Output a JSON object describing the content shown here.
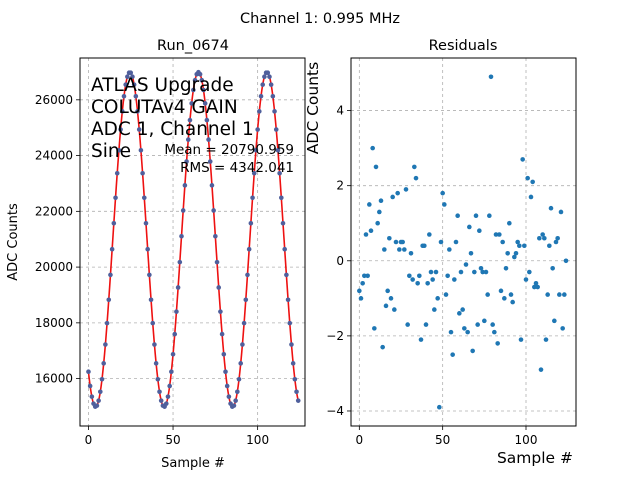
{
  "figure": {
    "suptitle": "Channel 1: 0.995 MHz"
  },
  "chart_data": [
    {
      "type": "line",
      "title": "Run_0674",
      "xlabel": "Sample #",
      "ylabel": "ADC Counts",
      "xlim": [
        -5,
        128
      ],
      "ylim": [
        14300,
        27500
      ],
      "xticks": [
        0,
        50,
        100
      ],
      "yticks": [
        16000,
        18000,
        20000,
        22000,
        24000,
        26000
      ],
      "grid": true,
      "annotations": {
        "info_lines": [
          "ATLAS Upgrade",
          "COLUTAv4 GAIN",
          "ADC 1, Channel 1",
          "Sine"
        ],
        "mean": "Mean = 20790.959",
        "rms": "RMS = 4342.041"
      },
      "model": {
        "offset": 20990,
        "amplitude": 6000,
        "period": 40.5,
        "peak_at": 24.5
      },
      "series": [
        {
          "kind": "points",
          "color": "#4f5f9c",
          "x_start": 0,
          "x_end": 124,
          "x_step": 1
        },
        {
          "kind": "fit",
          "color": "#ee1111"
        }
      ]
    },
    {
      "type": "scatter",
      "title": "Residuals",
      "xlabel": "Sample #",
      "ylabel": "ADC Counts",
      "xlim": [
        -5,
        130
      ],
      "ylim": [
        -4.4,
        5.4
      ],
      "xticks": [
        0,
        50,
        100
      ],
      "yticks": [
        -4,
        -2,
        0,
        2,
        4
      ],
      "grid": true,
      "color": "#1f77b4",
      "x": [
        0,
        1,
        2,
        3,
        4,
        5,
        6,
        7,
        8,
        9,
        10,
        11,
        12,
        13,
        14,
        15,
        16,
        17,
        18,
        19,
        20,
        21,
        22,
        23,
        24,
        25,
        26,
        27,
        28,
        29,
        30,
        31,
        32,
        33,
        34,
        35,
        36,
        37,
        38,
        39,
        40,
        41,
        42,
        43,
        44,
        45,
        46,
        47,
        48,
        49,
        50,
        51,
        52,
        53,
        54,
        55,
        56,
        57,
        58,
        59,
        60,
        61,
        62,
        63,
        64,
        65,
        66,
        67,
        68,
        69,
        70,
        71,
        72,
        73,
        74,
        75,
        76,
        77,
        78,
        79,
        80,
        81,
        82,
        83,
        84,
        85,
        86,
        87,
        88,
        89,
        90,
        91,
        92,
        93,
        94,
        95,
        96,
        97,
        98,
        99,
        100,
        101,
        102,
        103,
        104,
        105,
        106,
        107,
        108,
        109,
        110,
        111,
        112,
        113,
        114,
        115,
        116,
        117,
        118,
        119,
        120,
        121,
        122,
        123,
        124
      ],
      "y": [
        -0.8,
        -1.0,
        -0.6,
        -0.4,
        0.7,
        -0.4,
        1.5,
        0.8,
        3.0,
        -1.8,
        2.5,
        1.0,
        1.3,
        1.6,
        -2.3,
        0.3,
        -1.2,
        -0.8,
        0.6,
        -1.0,
        1.7,
        -1.3,
        0.5,
        1.8,
        0.3,
        0.5,
        0.5,
        0.3,
        1.9,
        -1.7,
        -0.4,
        0.2,
        -0.5,
        2.5,
        2.2,
        -0.6,
        -0.4,
        -2.1,
        0.4,
        0.4,
        -1.7,
        -0.6,
        0.7,
        -0.3,
        -0.5,
        -1.3,
        -0.3,
        -1.0,
        -3.9,
        0.5,
        1.8,
        1.5,
        -0.9,
        -0.4,
        0.3,
        -1.9,
        -2.5,
        -0.5,
        0.5,
        1.2,
        -1.4,
        -0.3,
        -1.3,
        -1.8,
        -0.1,
        -1.9,
        0.9,
        0.2,
        -2.4,
        -0.3,
        1.2,
        -1.7,
        0.8,
        -0.2,
        -0.3,
        -1.6,
        -0.3,
        -0.9,
        1.2,
        4.9,
        -1.7,
        -1.9,
        0.7,
        -2.2,
        0.7,
        -0.8,
        0.5,
        -1.0,
        -0.2,
        0.2,
        1.0,
        -0.9,
        -1.1,
        0.1,
        0.2,
        0.5,
        0.4,
        -2.1,
        2.7,
        0.4,
        -0.5,
        2.2,
        -0.3,
        1.7,
        2.1,
        -0.7,
        -0.6,
        -0.7,
        0.6,
        -2.9,
        0.7,
        0.6,
        -2.1,
        -0.9,
        0.4,
        1.4,
        -0.2,
        -1.6,
        0.5,
        0.6,
        -0.9,
        1.3,
        -1.8,
        -0.9,
        0.0
      ]
    }
  ]
}
